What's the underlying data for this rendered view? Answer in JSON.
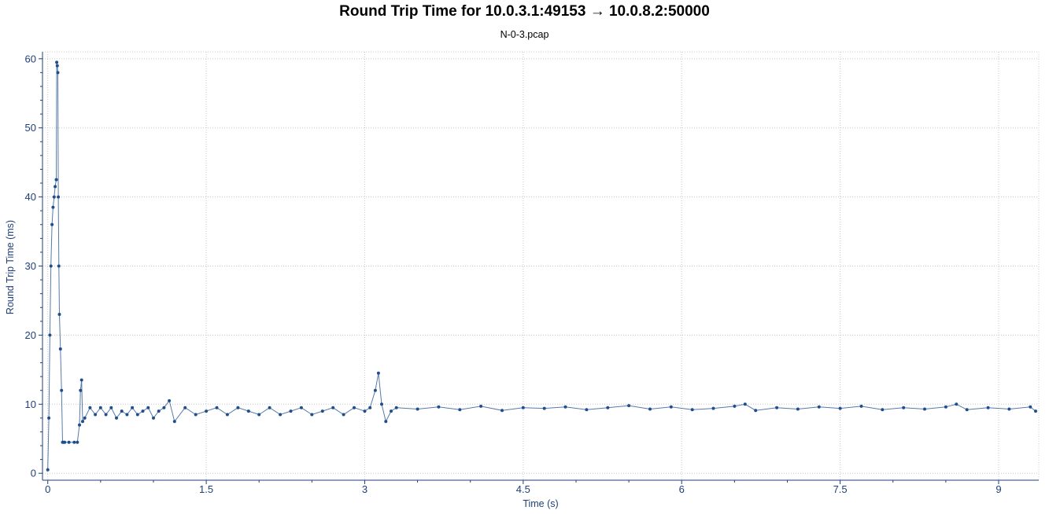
{
  "chart_data": {
    "type": "line",
    "title": "Round Trip Time for 10.0.3.1:49153 → 10.0.8.2:50000",
    "subtitle": "N-0-3.pcap",
    "xlabel": "Time (s)",
    "ylabel": "Round Trip Time (ms)",
    "xlim": [
      -0.05,
      9.38
    ],
    "ylim": [
      -1,
      61
    ],
    "x_ticks": [
      0,
      1.5,
      3,
      4.5,
      6,
      7.5,
      9
    ],
    "x_tick_labels": [
      "0",
      "1.5",
      "3",
      "4.5",
      "6",
      "7.5",
      "9"
    ],
    "y_ticks": [
      0,
      10,
      20,
      30,
      40,
      50,
      60
    ],
    "y_tick_labels": [
      "0",
      "10",
      "20",
      "30",
      "40",
      "50",
      "60"
    ],
    "grid": true,
    "colors": {
      "series": "#1f4e8c",
      "axis": "#1f3f77"
    },
    "series": [
      {
        "x": [
          0.0,
          0.01,
          0.02,
          0.03,
          0.04,
          0.05,
          0.06,
          0.07,
          0.08,
          0.085,
          0.09,
          0.095,
          0.1,
          0.105,
          0.11,
          0.12,
          0.13,
          0.14,
          0.15,
          0.16,
          0.2,
          0.25,
          0.28,
          0.3,
          0.31,
          0.32,
          0.33,
          0.35,
          0.4,
          0.45,
          0.5,
          0.55,
          0.6,
          0.65,
          0.7,
          0.75,
          0.8,
          0.85,
          0.9,
          0.95,
          1.0,
          1.05,
          1.1,
          1.15,
          1.2,
          1.3,
          1.4,
          1.5,
          1.6,
          1.7,
          1.8,
          1.9,
          2.0,
          2.1,
          2.2,
          2.3,
          2.4,
          2.5,
          2.6,
          2.7,
          2.8,
          2.9,
          3.0,
          3.05,
          3.1,
          3.13,
          3.16,
          3.2,
          3.25,
          3.3,
          3.5,
          3.7,
          3.9,
          4.1,
          4.3,
          4.5,
          4.7,
          4.9,
          5.1,
          5.3,
          5.5,
          5.7,
          5.9,
          6.1,
          6.3,
          6.5,
          6.6,
          6.7,
          6.9,
          7.1,
          7.3,
          7.5,
          7.7,
          7.9,
          8.1,
          8.3,
          8.5,
          8.6,
          8.7,
          8.9,
          9.1,
          9.3,
          9.35
        ],
        "y": [
          0.5,
          8,
          20,
          30,
          36,
          38.5,
          40,
          41.5,
          42.5,
          59.5,
          59,
          58,
          40,
          30,
          23,
          18,
          12,
          4.5,
          4.5,
          4.5,
          4.5,
          4.5,
          4.5,
          7,
          12,
          13.5,
          7.5,
          8,
          9.5,
          8.5,
          9.5,
          8.5,
          9.5,
          8,
          9,
          8.5,
          9.5,
          8.5,
          9,
          9.5,
          8,
          9,
          9.5,
          10.5,
          7.5,
          9.5,
          8.5,
          9,
          9.5,
          8.5,
          9.5,
          9,
          8.5,
          9.5,
          8.5,
          9,
          9.5,
          8.5,
          9,
          9.5,
          8.5,
          9.5,
          9,
          9.5,
          12,
          14.5,
          10,
          7.5,
          9,
          9.5,
          9.3,
          9.6,
          9.2,
          9.7,
          9.1,
          9.5,
          9.4,
          9.6,
          9.2,
          9.5,
          9.8,
          9.3,
          9.6,
          9.2,
          9.4,
          9.7,
          10,
          9.1,
          9.5,
          9.3,
          9.6,
          9.4,
          9.7,
          9.2,
          9.5,
          9.3,
          9.6,
          10,
          9.2,
          9.5,
          9.3,
          9.6,
          9.0
        ]
      }
    ]
  }
}
